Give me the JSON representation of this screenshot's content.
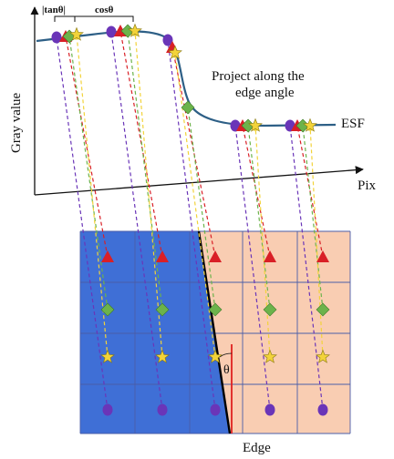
{
  "labels": {
    "tan": "|tanθ|",
    "cos": "cosθ",
    "y_axis": "Gray value",
    "x_axis": "Pix",
    "annotation_line1": "Project along the",
    "annotation_line2": "edge angle",
    "curve": "ESF",
    "edge": "Edge",
    "angle": "θ"
  },
  "colors": {
    "dark_region": "#3f6fd6",
    "light_region": "#f9cdb2",
    "grid": "#4a5ea8",
    "curve": "#2d5f86",
    "circle": "#6a35b8",
    "triangle": "#d91f26",
    "diamond": "#6cb34b",
    "star": "#f2d33a",
    "edge_line": "#000000",
    "angle_line": "#e02020"
  },
  "markers": [
    "circle-marker",
    "triangle-marker",
    "diamond-marker",
    "star-marker"
  ]
}
